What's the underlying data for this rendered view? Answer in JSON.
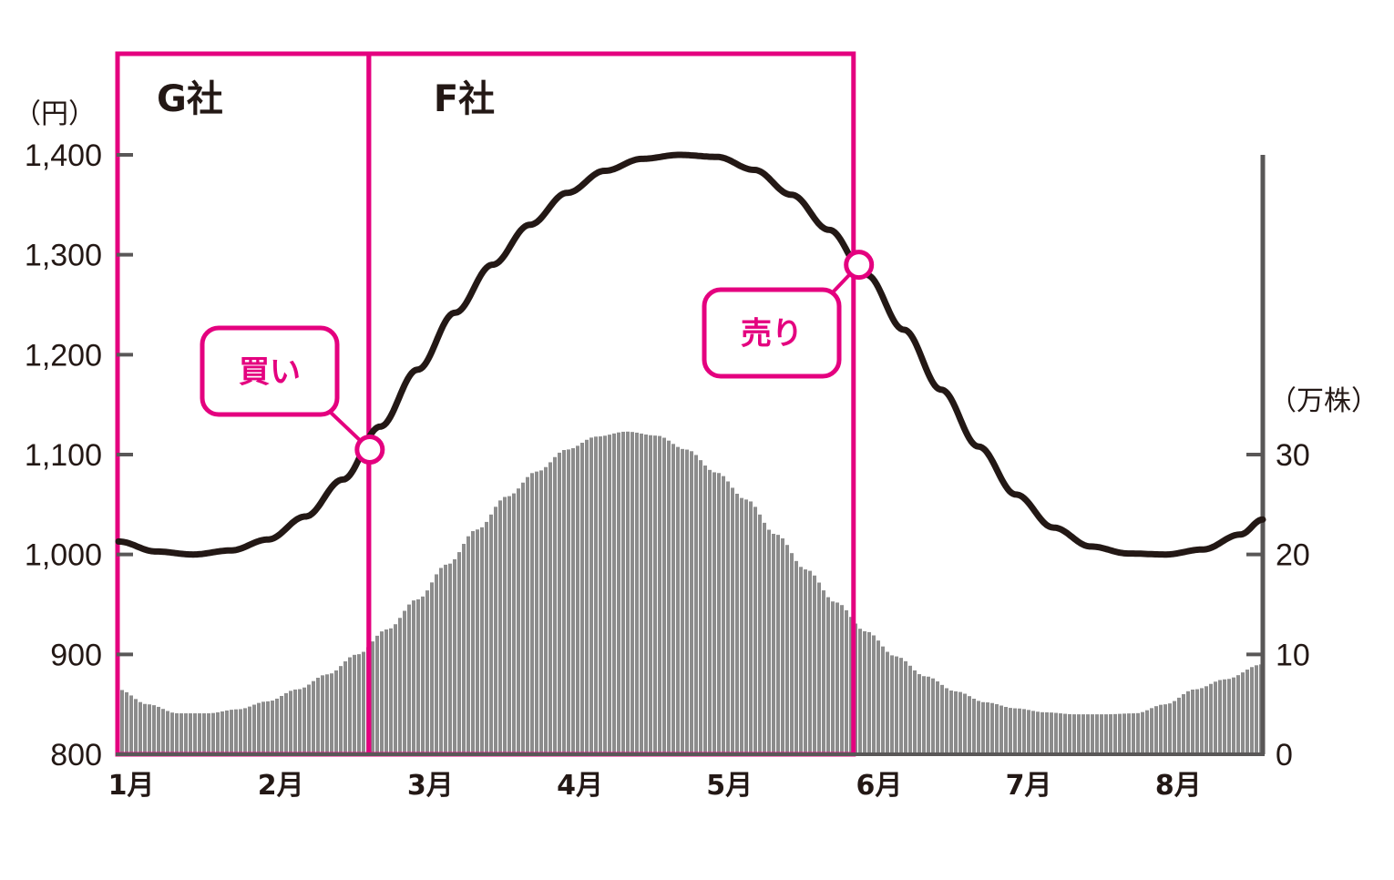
{
  "colors": {
    "accent": "#e4007f",
    "price_line": "#231815",
    "volume_bar": "#8c8c8c",
    "axis": "#595757",
    "text": "#231815"
  },
  "chart_data": {
    "type": "line+bar",
    "title": "",
    "y_left": {
      "unit_label": "（円）",
      "range": [
        800,
        1400
      ],
      "ticks": [
        800,
        900,
        1000,
        1100,
        1200,
        1300,
        1400
      ],
      "tick_labels": [
        "800",
        "900",
        "1,000",
        "1,100",
        "1,200",
        "1,300",
        "1,400"
      ]
    },
    "y_right": {
      "unit_label": "（万株）",
      "range": [
        0,
        60
      ],
      "ticks": [
        0,
        10,
        20,
        30
      ],
      "tick_labels": [
        "0",
        "10",
        "20",
        "30"
      ]
    },
    "x": {
      "range": [
        1.0,
        8.65
      ],
      "months": [
        1,
        2,
        3,
        4,
        5,
        6,
        7,
        8
      ],
      "month_labels": [
        "1月",
        "2月",
        "3月",
        "4月",
        "5月",
        "6月",
        "7月",
        "8月"
      ]
    },
    "price_series": {
      "name": "",
      "x": [
        1.0,
        1.25,
        1.5,
        1.75,
        2.0,
        2.25,
        2.5,
        2.75,
        3.0,
        3.25,
        3.5,
        3.75,
        4.0,
        4.25,
        4.5,
        4.75,
        5.0,
        5.25,
        5.5,
        5.75,
        6.0,
        6.25,
        6.5,
        6.75,
        7.0,
        7.25,
        7.5,
        7.75,
        8.0,
        8.25,
        8.5,
        8.65
      ],
      "y": [
        1013,
        1003,
        1000,
        1004,
        1015,
        1038,
        1075,
        1128,
        1185,
        1242,
        1290,
        1330,
        1362,
        1384,
        1396,
        1400,
        1398,
        1385,
        1360,
        1325,
        1280,
        1225,
        1165,
        1108,
        1060,
        1027,
        1008,
        1001,
        1000,
        1005,
        1020,
        1035
      ]
    },
    "volume_series": {
      "name": "",
      "x": [
        1.0,
        1.2,
        1.4,
        1.6,
        1.8,
        2.0,
        2.2,
        2.4,
        2.6,
        2.8,
        3.0,
        3.2,
        3.4,
        3.6,
        3.8,
        4.0,
        4.2,
        4.4,
        4.6,
        4.8,
        5.0,
        5.2,
        5.4,
        5.6,
        5.8,
        6.0,
        6.2,
        6.4,
        6.6,
        6.8,
        7.0,
        7.2,
        7.4,
        7.6,
        7.8,
        8.0,
        8.2,
        8.4,
        8.65
      ],
      "y": [
        6.5,
        5.0,
        4.1,
        4.1,
        4.5,
        5.3,
        6.5,
        8.0,
        10.0,
        12.5,
        15.5,
        19.0,
        22.5,
        25.8,
        28.3,
        30.5,
        31.8,
        32.3,
        31.9,
        30.5,
        28.2,
        25.5,
        22.0,
        18.5,
        15.2,
        12.3,
        9.8,
        7.8,
        6.3,
        5.2,
        4.6,
        4.2,
        4.0,
        4.0,
        4.1,
        5.0,
        6.5,
        7.5,
        9.0
      ]
    },
    "companies": [
      {
        "label": "G社",
        "x_start": 1.0,
        "x_end": 2.68
      },
      {
        "label": "F社",
        "x_start": 2.68,
        "x_end": 5.92
      }
    ],
    "annotations": [
      {
        "label": "買い",
        "x": 2.68,
        "y": 1105
      },
      {
        "label": "売り",
        "x": 5.95,
        "y": 1290
      }
    ]
  }
}
